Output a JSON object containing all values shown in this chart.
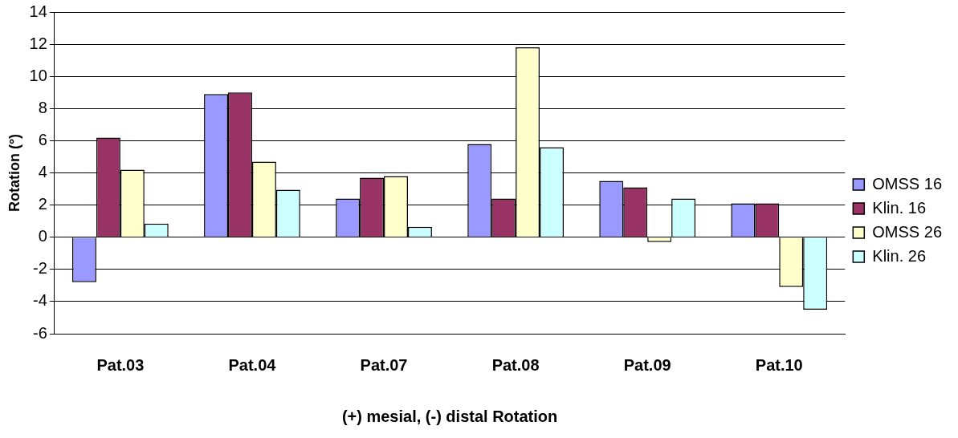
{
  "chart_data": {
    "type": "bar",
    "xlabel": "(+) mesial, (-) distal Rotation",
    "ylabel": "Rotation (°)",
    "categories": [
      "Pat.03",
      "Pat.04",
      "Pat.07",
      "Pat.08",
      "Pat.09",
      "Pat.10"
    ],
    "series": [
      {
        "name": "OMSS 16",
        "color": "#9999ff",
        "values": [
          -2.8,
          8.9,
          2.4,
          5.8,
          3.5,
          2.1
        ]
      },
      {
        "name": "Klin. 16",
        "color": "#993366",
        "values": [
          6.2,
          9.0,
          3.7,
          2.4,
          3.1,
          2.1
        ]
      },
      {
        "name": "OMSS 26",
        "color": "#ffffcc",
        "values": [
          4.2,
          4.7,
          3.8,
          11.8,
          -0.3,
          -3.1
        ]
      },
      {
        "name": "Klin. 26",
        "color": "#ccffff",
        "values": [
          0.85,
          2.95,
          0.65,
          5.6,
          2.4,
          -4.5
        ]
      }
    ],
    "ylim": [
      -6,
      14
    ],
    "yticks": [
      -6,
      -4,
      -2,
      0,
      2,
      4,
      6,
      8,
      10,
      12,
      14
    ],
    "grid": "y",
    "legend": "right"
  }
}
